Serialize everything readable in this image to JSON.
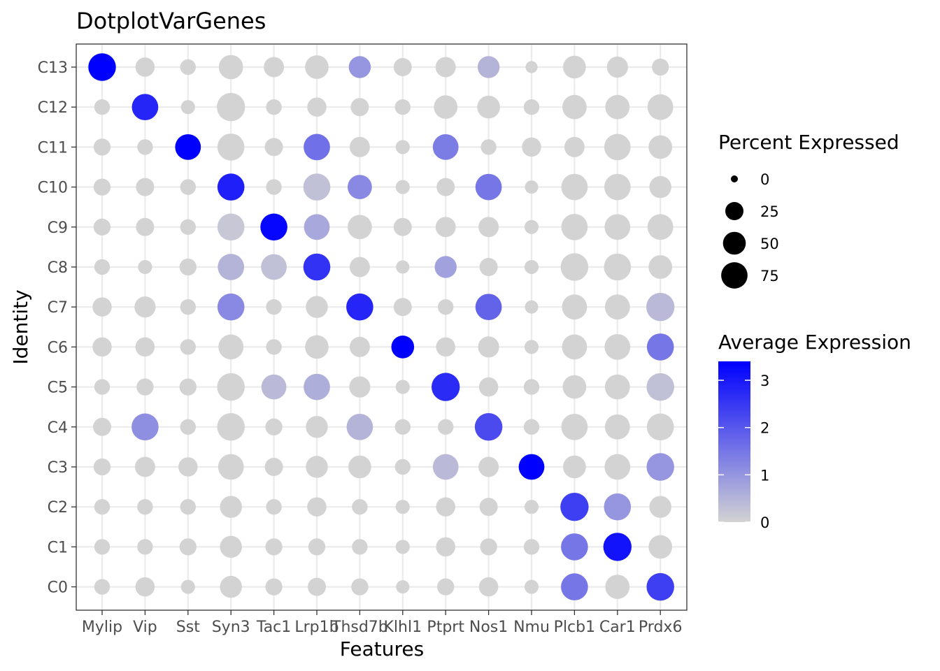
{
  "chart_data": {
    "type": "dotplot",
    "title": "DotplotVarGenes",
    "xlabel": "Features",
    "ylabel": "Identity",
    "features": [
      "Mylip",
      "Vip",
      "Sst",
      "Syn3",
      "Tac1",
      "Lrp1b",
      "Thsd7b",
      "Klhl1",
      "Ptprt",
      "Nos1",
      "Nmu",
      "Plcb1",
      "Car1",
      "Prdx6"
    ],
    "identities": [
      "C0",
      "C1",
      "C2",
      "C3",
      "C4",
      "C5",
      "C6",
      "C7",
      "C8",
      "C9",
      "C10",
      "C11",
      "C12",
      "C13"
    ],
    "grid": true,
    "color_scale": {
      "low": "#d3d3d3",
      "high": "#0000ff",
      "min": 0,
      "max": 3.4
    },
    "size_legend": {
      "title": "Percent Expressed",
      "values": [
        0,
        25,
        50,
        75
      ],
      "labels": [
        "0",
        "25",
        "50",
        "75"
      ]
    },
    "color_legend": {
      "title": "Average Expression",
      "ticks": [
        0,
        1,
        2,
        3
      ],
      "labels": [
        "0",
        "1",
        "2",
        "3"
      ]
    },
    "pct_expressed": {
      "C13": [
        85,
        30,
        15,
        60,
        35,
        55,
        45,
        25,
        35,
        45,
        5,
        50,
        40,
        20
      ],
      "C12": [
        15,
        75,
        10,
        90,
        15,
        30,
        25,
        15,
        55,
        50,
        15,
        60,
        60,
        70
      ],
      "C11": [
        20,
        15,
        70,
        80,
        25,
        75,
        35,
        10,
        70,
        15,
        30,
        35,
        75,
        55
      ],
      "C10": [
        20,
        25,
        15,
        80,
        15,
        80,
        60,
        10,
        25,
        75,
        8,
        75,
        75,
        45
      ],
      "C9": [
        20,
        25,
        15,
        80,
        80,
        70,
        60,
        25,
        35,
        35,
        10,
        75,
        70,
        70
      ],
      "C8": [
        15,
        10,
        20,
        75,
        70,
        80,
        35,
        8,
        45,
        25,
        10,
        85,
        80,
        55
      ],
      "C7": [
        30,
        40,
        15,
        80,
        15,
        45,
        80,
        25,
        15,
        75,
        8,
        65,
        65,
        90
      ],
      "C6": [
        30,
        30,
        15,
        65,
        15,
        55,
        35,
        50,
        30,
        40,
        10,
        65,
        70,
        80
      ],
      "C5": [
        15,
        20,
        20,
        85,
        65,
        75,
        40,
        10,
        90,
        30,
        15,
        55,
        65,
        85
      ],
      "C4": [
        25,
        80,
        15,
        85,
        20,
        45,
        75,
        15,
        15,
        85,
        15,
        75,
        65,
        80
      ],
      "C3": [
        20,
        35,
        30,
        70,
        25,
        45,
        50,
        15,
        70,
        35,
        70,
        50,
        70,
        85
      ],
      "C2": [
        15,
        15,
        15,
        45,
        15,
        30,
        15,
        10,
        30,
        25,
        10,
        90,
        80,
        45
      ],
      "C1": [
        15,
        15,
        20,
        45,
        20,
        20,
        15,
        10,
        30,
        20,
        15,
        80,
        90,
        55
      ],
      "C0": [
        15,
        30,
        10,
        45,
        20,
        25,
        20,
        8,
        20,
        30,
        10,
        80,
        60,
        85
      ]
    },
    "avg_expression": {
      "C13": [
        3.4,
        0,
        0,
        0,
        0,
        0,
        1.0,
        0,
        0,
        0.5,
        0,
        0,
        0,
        0
      ],
      "C12": [
        0,
        2.8,
        0,
        0,
        0,
        0,
        0,
        0,
        0,
        0,
        0,
        0,
        0,
        0
      ],
      "C11": [
        0,
        0,
        3.4,
        0,
        0,
        1.6,
        0,
        0,
        1.4,
        0,
        0,
        0,
        0,
        0
      ],
      "C10": [
        0,
        0,
        0,
        2.9,
        0,
        0.3,
        1.2,
        0,
        0,
        1.5,
        0,
        0,
        0,
        0
      ],
      "C9": [
        0,
        0,
        0,
        0.2,
        3.3,
        0.7,
        0,
        0,
        0,
        0,
        0,
        0,
        0,
        0
      ],
      "C8": [
        0,
        0,
        0,
        0.5,
        0.3,
        2.6,
        0,
        0,
        0.8,
        0,
        0,
        0,
        0,
        0
      ],
      "C7": [
        0,
        0,
        0,
        1.2,
        0,
        0,
        2.8,
        0,
        0,
        1.8,
        0,
        0,
        0,
        0.4
      ],
      "C6": [
        0,
        0,
        0,
        0,
        0,
        0,
        0,
        3.4,
        0,
        0,
        0,
        0,
        0,
        1.5
      ],
      "C5": [
        0,
        0,
        0,
        0,
        0.4,
        0.6,
        0,
        0,
        2.7,
        0,
        0,
        0,
        0,
        0.3
      ],
      "C4": [
        0,
        1.1,
        0,
        0,
        0,
        0,
        0.5,
        0,
        0,
        2.2,
        0,
        0,
        0,
        0
      ],
      "C3": [
        0,
        0,
        0,
        0,
        0,
        0,
        0,
        0,
        0.4,
        0,
        3.4,
        0,
        0,
        1.0
      ],
      "C2": [
        0,
        0,
        0,
        0,
        0,
        0,
        0,
        0,
        0,
        0,
        0,
        2.4,
        1.0,
        0
      ],
      "C1": [
        0,
        0,
        0,
        0,
        0,
        0,
        0,
        0,
        0,
        0,
        0,
        1.5,
        3.1,
        0
      ],
      "C0": [
        0,
        0,
        0,
        0,
        0,
        0,
        0,
        0,
        0,
        0,
        0,
        1.5,
        0,
        2.4
      ]
    }
  }
}
